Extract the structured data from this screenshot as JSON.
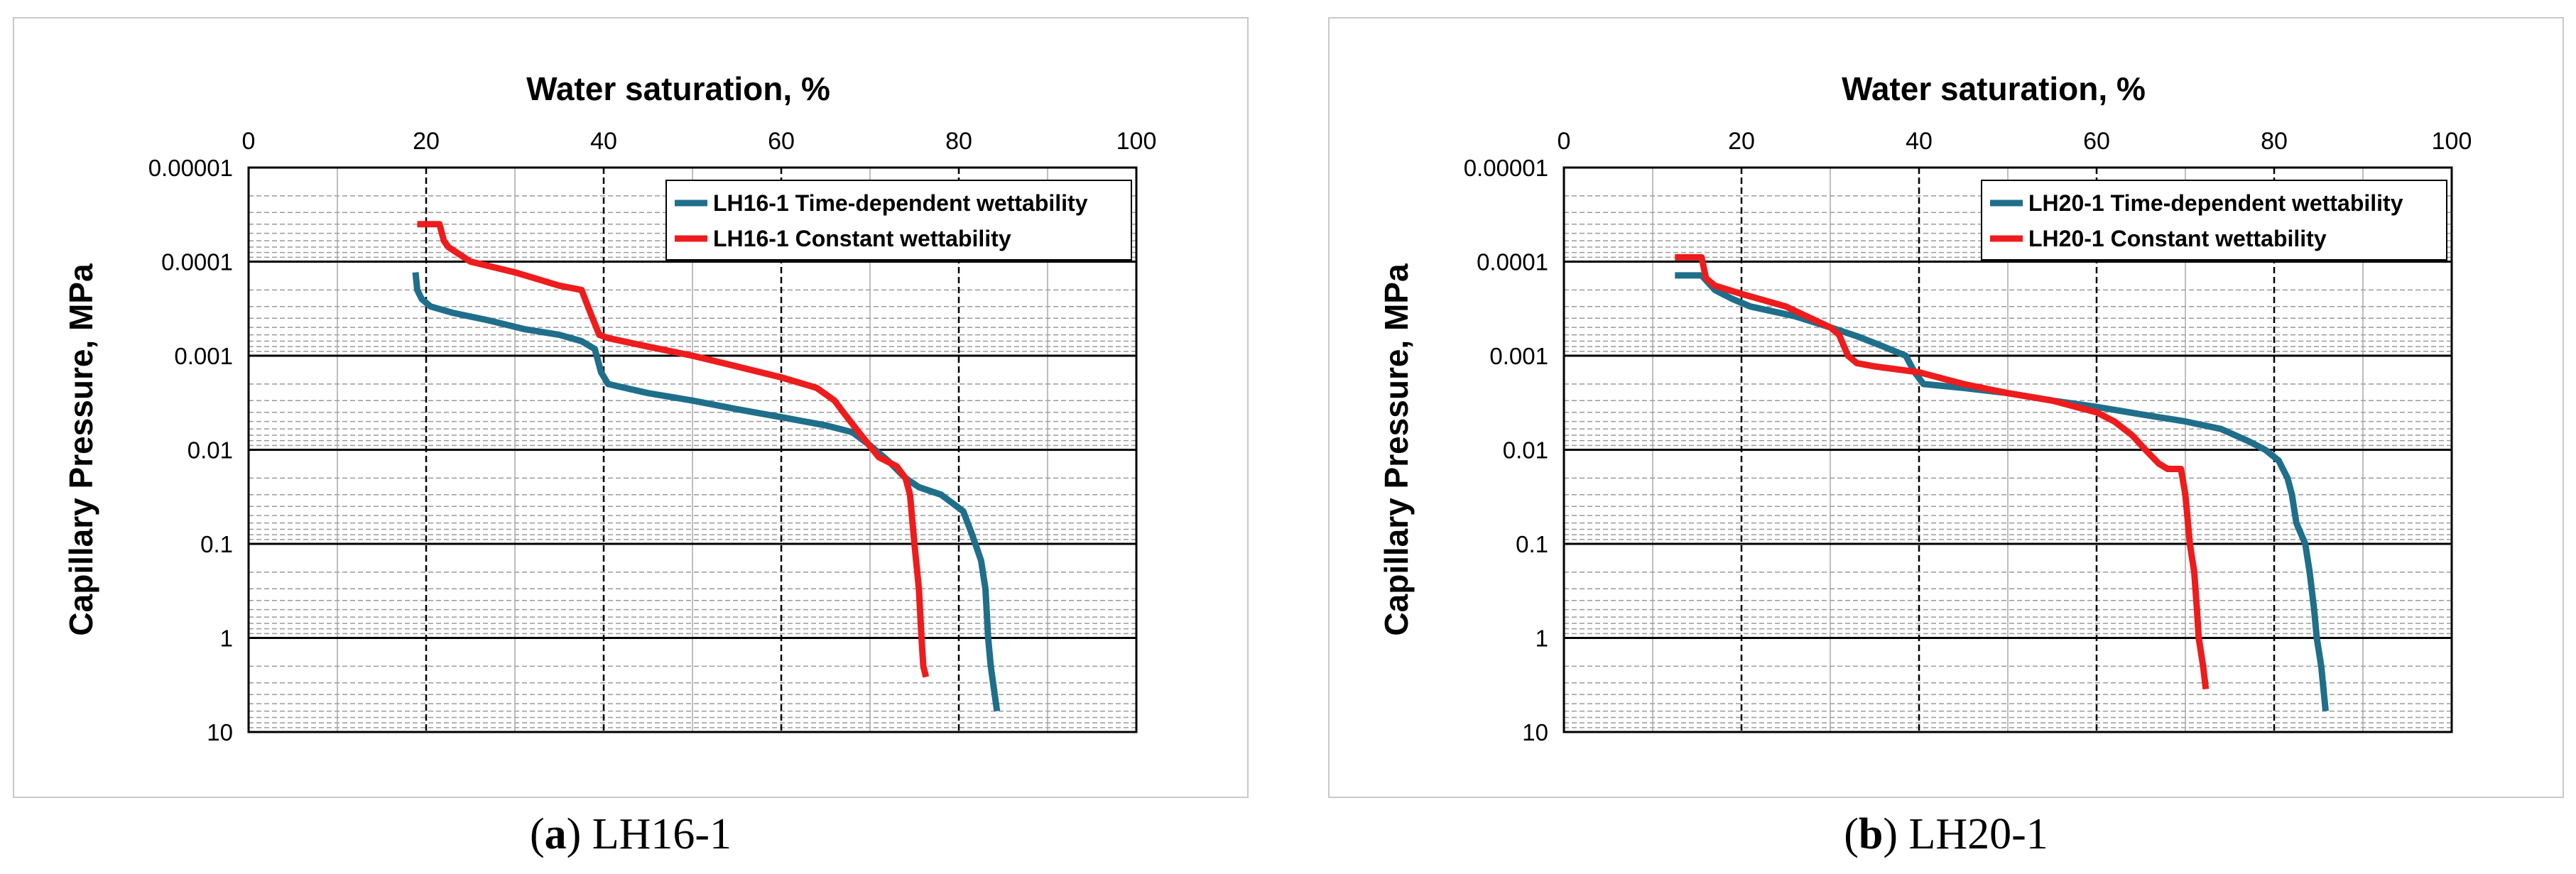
{
  "chart_data": [
    {
      "type": "line",
      "title": "",
      "xlabel": "Water saturation,  %",
      "ylabel": "Capillary Pressure,  MPa",
      "x_ticks": [
        "0",
        "20",
        "40",
        "60",
        "80",
        "100"
      ],
      "y_ticks": [
        "0.00001",
        "0.0001",
        "0.001",
        "0.01",
        "0.1",
        "1",
        "10"
      ],
      "xlim": [
        0,
        100
      ],
      "ylim": [
        1e-05,
        10
      ],
      "y_scale": "log",
      "y_inverted": true,
      "legend_position": "top-right",
      "series": [
        {
          "name": "LH16-1 Time-dependent wettability",
          "color": "#1f6f8b",
          "points": [
            [
              18.8,
              0.00013
            ],
            [
              19.0,
              0.0002
            ],
            [
              19.5,
              0.00025
            ],
            [
              20.5,
              0.0003
            ],
            [
              23,
              0.00035
            ],
            [
              27,
              0.00042
            ],
            [
              31,
              0.00052
            ],
            [
              35,
              0.0006
            ],
            [
              37.5,
              0.0007
            ],
            [
              39,
              0.00085
            ],
            [
              39.7,
              0.0015
            ],
            [
              40.5,
              0.002
            ],
            [
              45,
              0.0025
            ],
            [
              50,
              0.003
            ],
            [
              55,
              0.0037
            ],
            [
              60,
              0.0045
            ],
            [
              65,
              0.0055
            ],
            [
              68,
              0.0065
            ],
            [
              70,
              0.009
            ],
            [
              72,
              0.013
            ],
            [
              74,
              0.02
            ],
            [
              75.5,
              0.025
            ],
            [
              78,
              0.03
            ],
            [
              80.5,
              0.045
            ],
            [
              81.5,
              0.08
            ],
            [
              82.5,
              0.15
            ],
            [
              83,
              0.3
            ],
            [
              83.3,
              1.0
            ],
            [
              83.6,
              2.0
            ],
            [
              84.3,
              6.0
            ]
          ]
        },
        {
          "name": "LH16-1 Constant wettability",
          "color": "#ee1c1c",
          "points": [
            [
              19,
              4e-05
            ],
            [
              21.5,
              4e-05
            ],
            [
              22,
              6e-05
            ],
            [
              22.5,
              7e-05
            ],
            [
              25,
              0.0001
            ],
            [
              30,
              0.00013
            ],
            [
              35,
              0.00018
            ],
            [
              37.5,
              0.0002
            ],
            [
              38.5,
              0.00035
            ],
            [
              39.5,
              0.0006
            ],
            [
              40.5,
              0.00065
            ],
            [
              45,
              0.0008
            ],
            [
              50,
              0.001
            ],
            [
              55,
              0.0013
            ],
            [
              60,
              0.0017
            ],
            [
              64,
              0.0022
            ],
            [
              66,
              0.003
            ],
            [
              67,
              0.004
            ],
            [
              69,
              0.007
            ],
            [
              71,
              0.012
            ],
            [
              73,
              0.015
            ],
            [
              74,
              0.02
            ],
            [
              74.5,
              0.03
            ],
            [
              75,
              0.1
            ],
            [
              75.5,
              0.3
            ],
            [
              75.8,
              1.0
            ],
            [
              76,
              2.0
            ],
            [
              76.3,
              2.6
            ]
          ]
        }
      ]
    },
    {
      "type": "line",
      "title": "",
      "xlabel": "Water saturation,  %",
      "ylabel": "Capillary Pressure,  MPa",
      "x_ticks": [
        "0",
        "20",
        "40",
        "60",
        "80",
        "100"
      ],
      "y_ticks": [
        "0.00001",
        "0.0001",
        "0.001",
        "0.01",
        "0.1",
        "1",
        "10"
      ],
      "xlim": [
        0,
        100
      ],
      "ylim": [
        1e-05,
        10
      ],
      "y_scale": "log",
      "y_inverted": true,
      "legend_position": "top-right",
      "series": [
        {
          "name": "LH20-1 Time-dependent wettability",
          "color": "#1f6f8b",
          "points": [
            [
              12.5,
              0.00014
            ],
            [
              15.5,
              0.00014
            ],
            [
              17,
              0.0002
            ],
            [
              19,
              0.00025
            ],
            [
              21,
              0.0003
            ],
            [
              26,
              0.00038
            ],
            [
              30,
              0.0005
            ],
            [
              33,
              0.00062
            ],
            [
              36,
              0.0008
            ],
            [
              38.5,
              0.001
            ],
            [
              39.5,
              0.0015
            ],
            [
              40.5,
              0.002
            ],
            [
              45,
              0.0022
            ],
            [
              50,
              0.0025
            ],
            [
              55,
              0.003
            ],
            [
              60,
              0.0035
            ],
            [
              65,
              0.0042
            ],
            [
              70,
              0.005
            ],
            [
              74,
              0.006
            ],
            [
              77,
              0.008
            ],
            [
              79,
              0.01
            ],
            [
              80.5,
              0.013
            ],
            [
              81.5,
              0.02
            ],
            [
              82,
              0.03
            ],
            [
              82.5,
              0.06
            ],
            [
              83.5,
              0.1
            ],
            [
              84,
              0.2
            ],
            [
              84.5,
              0.5
            ],
            [
              84.8,
              1.0
            ],
            [
              85.3,
              2.0
            ],
            [
              85.8,
              6.0
            ]
          ]
        },
        {
          "name": "LH20-1 Constant wettability",
          "color": "#ee1c1c",
          "points": [
            [
              12.5,
              9e-05
            ],
            [
              15.5,
              9e-05
            ],
            [
              16,
              0.00015
            ],
            [
              17,
              0.00018
            ],
            [
              20,
              0.00022
            ],
            [
              25,
              0.0003
            ],
            [
              30,
              0.0005
            ],
            [
              31,
              0.0006
            ],
            [
              32,
              0.001
            ],
            [
              33,
              0.0012
            ],
            [
              35,
              0.0013
            ],
            [
              40,
              0.0015
            ],
            [
              45,
              0.002
            ],
            [
              50,
              0.0025
            ],
            [
              55,
              0.003
            ],
            [
              60,
              0.004
            ],
            [
              62,
              0.005
            ],
            [
              64,
              0.007
            ],
            [
              65.5,
              0.01
            ],
            [
              67,
              0.014
            ],
            [
              68,
              0.016
            ],
            [
              69.5,
              0.016
            ],
            [
              70,
              0.03
            ],
            [
              70.5,
              0.1
            ],
            [
              71,
              0.2
            ],
            [
              71.3,
              0.5
            ],
            [
              71.5,
              1.0
            ],
            [
              72,
              2.0
            ],
            [
              72.3,
              3.5
            ]
          ]
        }
      ]
    }
  ],
  "captions": [
    {
      "letter": "a",
      "text": " LH16-1"
    },
    {
      "letter": "b",
      "text": " LH20-1"
    }
  ]
}
